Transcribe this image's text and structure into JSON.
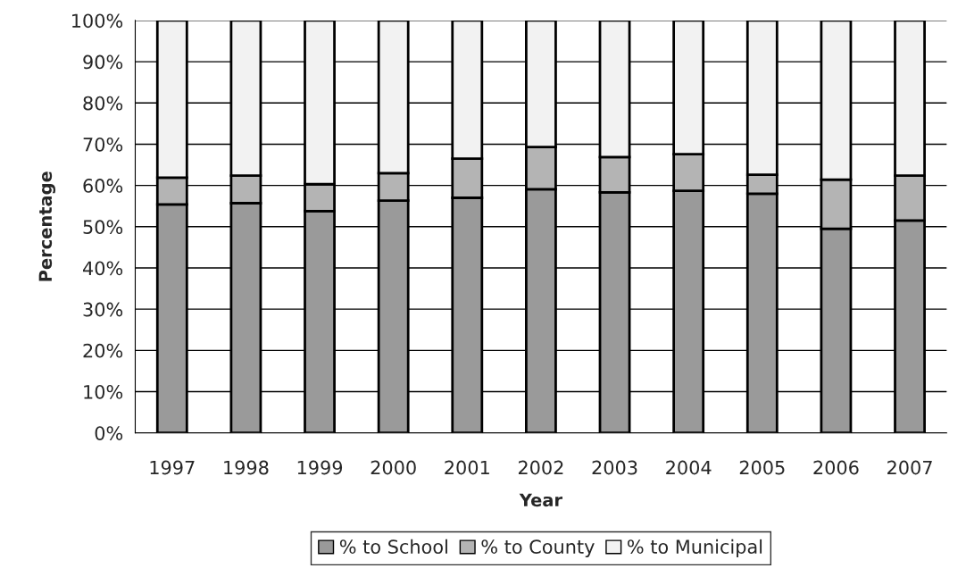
{
  "chart_data": {
    "type": "bar",
    "stacked": true,
    "xlabel": "Year",
    "ylabel": "Percentage",
    "categories": [
      "1997",
      "1998",
      "1999",
      "2000",
      "2001",
      "2002",
      "2003",
      "2004",
      "2005",
      "2006",
      "2007"
    ],
    "series": [
      {
        "name": "% to School",
        "color": "#9a9a9a",
        "values": [
          55.4,
          55.7,
          53.8,
          56.3,
          57.0,
          59.1,
          58.3,
          58.7,
          58.0,
          49.5,
          51.5
        ]
      },
      {
        "name": "% to County",
        "color": "#b4b4b4",
        "values": [
          6.5,
          6.7,
          6.5,
          6.7,
          9.5,
          10.2,
          8.6,
          8.9,
          4.6,
          11.9,
          10.9
        ]
      },
      {
        "name": "% to Municipal",
        "color": "#f2f2f2",
        "values": [
          38.1,
          37.6,
          39.7,
          37.0,
          33.5,
          30.7,
          33.1,
          32.4,
          37.4,
          38.6,
          37.6
        ]
      }
    ],
    "ylim": [
      0,
      100
    ],
    "yticks": [
      {
        "value": 0,
        "label": "0%"
      },
      {
        "value": 10,
        "label": "10%"
      },
      {
        "value": 20,
        "label": "20%"
      },
      {
        "value": 30,
        "label": "30%"
      },
      {
        "value": 40,
        "label": "40%"
      },
      {
        "value": 50,
        "label": "50%"
      },
      {
        "value": 60,
        "label": "60%"
      },
      {
        "value": 70,
        "label": "70%"
      },
      {
        "value": 80,
        "label": "80%"
      },
      {
        "value": 90,
        "label": "90%"
      },
      {
        "value": 100,
        "label": "100%"
      }
    ],
    "grid": "y",
    "legend": "bottom"
  }
}
